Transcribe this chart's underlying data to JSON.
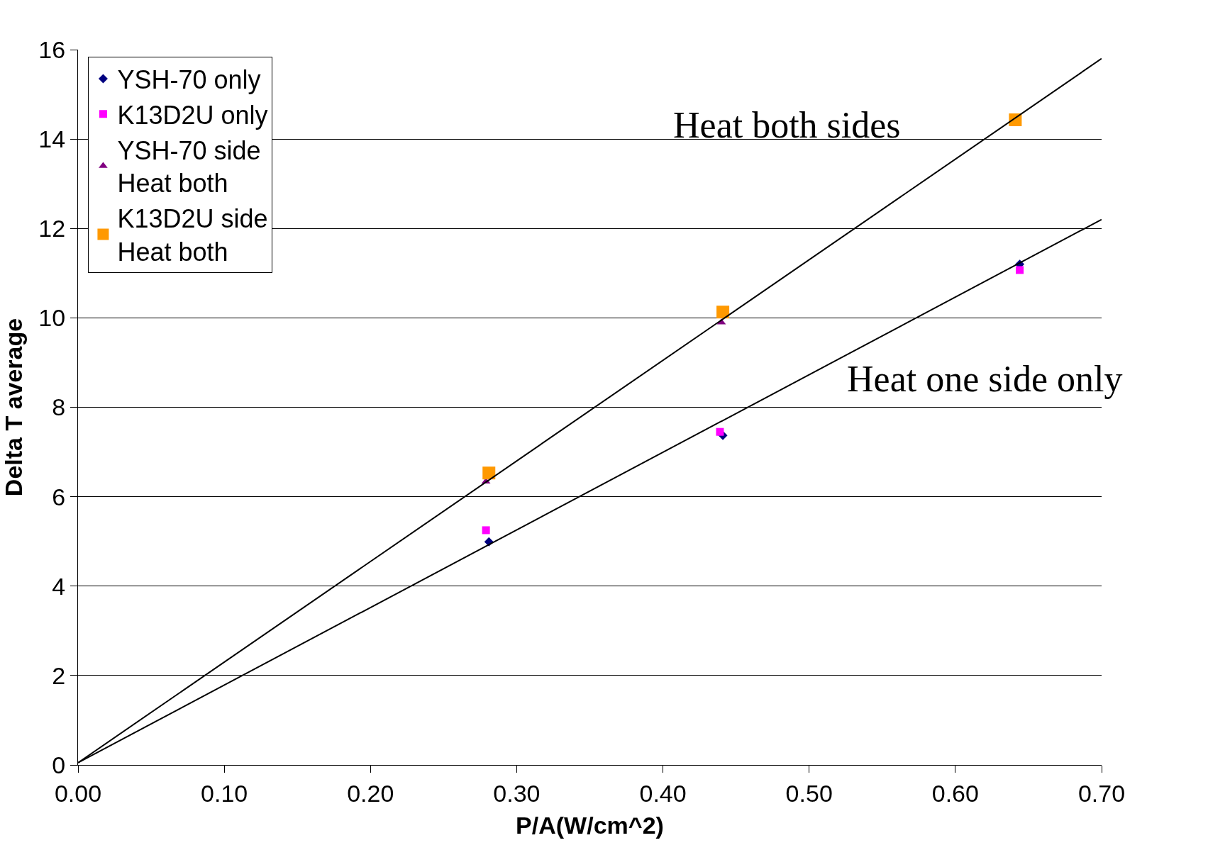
{
  "chart_data": {
    "type": "scatter",
    "xlabel": "P/A(W/cm^2)",
    "ylabel": "Delta T average",
    "xlim": [
      0,
      0.7
    ],
    "xticks": [
      {
        "value": 0,
        "label": "0.00"
      },
      {
        "value": 0.1,
        "label": "0.10"
      },
      {
        "value": 0.2,
        "label": "0.20"
      },
      {
        "value": 0.3,
        "label": "0.30"
      },
      {
        "value": 0.4,
        "label": "0.40"
      },
      {
        "value": 0.5,
        "label": "0.50"
      },
      {
        "value": 0.6,
        "label": "0.60"
      },
      {
        "value": 0.7,
        "label": "0.70"
      }
    ],
    "ylim": [
      0,
      16
    ],
    "yticks": [
      0,
      2,
      4,
      6,
      8,
      10,
      12,
      14,
      16
    ],
    "grid": "y",
    "legend": "top left",
    "series": [
      {
        "name": "YSH-70 only",
        "color": "#000080",
        "marker": "diamond",
        "x": [
          0.281,
          0.441,
          0.644
        ],
        "values": [
          4.99,
          7.37,
          11.2
        ]
      },
      {
        "name": "K13D2U only",
        "color": "#ff00ff",
        "marker": "square",
        "x": [
          0.279,
          0.439,
          0.644
        ],
        "values": [
          5.25,
          7.45,
          11.07
        ]
      },
      {
        "name": "YSH-70 side\nHeat both",
        "color": "#800080",
        "marker": "triangle",
        "x": [
          0.279,
          0.44
        ],
        "values": [
          6.34,
          9.9
        ]
      },
      {
        "name": "K13D2U side\nHeat both",
        "color": "#ff9900",
        "marker": "square",
        "x": [
          0.281,
          0.441,
          0.641
        ],
        "values": [
          6.53,
          10.13,
          14.43
        ]
      },
      {
        "type": "line",
        "color": "#000000",
        "marker": "none",
        "x": [
          0,
          0.7
        ],
        "values": [
          0.05,
          15.8
        ]
      },
      {
        "type": "line",
        "color": "#000000",
        "marker": "none",
        "x": [
          0,
          0.7
        ],
        "values": [
          0.05,
          12.2
        ]
      }
    ],
    "annotations": [
      "Heat both sides",
      "Heat one side only"
    ]
  }
}
